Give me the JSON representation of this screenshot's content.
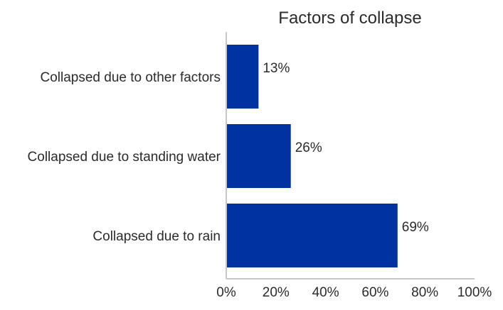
{
  "chart_data": {
    "type": "bar",
    "orientation": "horizontal",
    "title": "Factors of collapse",
    "categories": [
      "Collapsed due to other factors",
      "Collapsed due to standing water",
      "Collapsed due to rain"
    ],
    "values": [
      13,
      26,
      69
    ],
    "data_labels": [
      "13%",
      "26%",
      "69%"
    ],
    "xlabel": "",
    "ylabel": "",
    "xlim": [
      0,
      100
    ],
    "x_ticks": [
      0,
      20,
      40,
      60,
      80,
      100
    ],
    "x_tick_labels": [
      "0%",
      "20%",
      "40%",
      "60%",
      "80%",
      "100%"
    ],
    "grid": false,
    "legend": "none",
    "bar_color": "#0033a1",
    "axis_color": "#c8c8c8",
    "text_color": "#2b2b2b"
  }
}
